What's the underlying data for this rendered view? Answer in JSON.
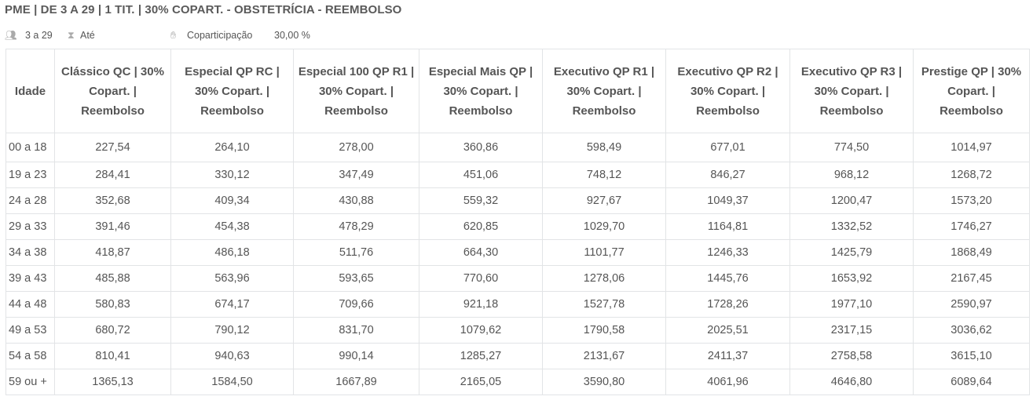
{
  "title": "PME | DE 3 A 29 | 1 TIT. | 30% COPART. - OBSTETRÍCIA - REEMBOLSO",
  "info": {
    "lives_icon": "people-icon",
    "lives": "3 a 29",
    "term_icon": "hourglass-icon",
    "term": "Até",
    "copart_icon": "hand-coin-icon",
    "copart_label": "Coparticipação",
    "copart_value": "30,00 %"
  },
  "table": {
    "headers": [
      "Idade",
      "Clássico QC | 30% Copart. | Reembolso",
      "Especial QP RC | 30% Copart. | Reembolso",
      "Especial 100 QP R1 | 30% Copart. | Reembolso",
      "Especial Mais QP | 30% Copart. | Reembolso",
      "Executivo QP R1 | 30% Copart. | Reembolso",
      "Executivo QP R2 | 30% Copart. | Reembolso",
      "Executivo QP R3 | 30% Copart. | Reembolso",
      "Prestige QP | 30% Copart. | Reembolso"
    ],
    "rows": [
      [
        "00 a 18",
        "227,54",
        "264,10",
        "278,00",
        "360,86",
        "598,49",
        "677,01",
        "774,50",
        "1014,97"
      ],
      [
        "19 a 23",
        "284,41",
        "330,12",
        "347,49",
        "451,06",
        "748,12",
        "846,27",
        "968,12",
        "1268,72"
      ],
      [
        "24 a 28",
        "352,68",
        "409,34",
        "430,88",
        "559,32",
        "927,67",
        "1049,37",
        "1200,47",
        "1573,20"
      ],
      [
        "29 a 33",
        "391,46",
        "454,38",
        "478,29",
        "620,85",
        "1029,70",
        "1164,81",
        "1332,52",
        "1746,27"
      ],
      [
        "34 a 38",
        "418,87",
        "486,18",
        "511,76",
        "664,30",
        "1101,77",
        "1246,33",
        "1425,79",
        "1868,49"
      ],
      [
        "39 a 43",
        "485,88",
        "563,96",
        "593,65",
        "770,60",
        "1278,06",
        "1445,76",
        "1653,92",
        "2167,45"
      ],
      [
        "44 a 48",
        "580,83",
        "674,17",
        "709,66",
        "921,18",
        "1527,78",
        "1728,26",
        "1977,10",
        "2590,97"
      ],
      [
        "49 a 53",
        "680,72",
        "790,12",
        "831,70",
        "1079,62",
        "1790,58",
        "2025,51",
        "2317,15",
        "3036,62"
      ],
      [
        "54 a 58",
        "810,41",
        "940,63",
        "990,14",
        "1285,27",
        "2131,67",
        "2411,37",
        "2758,58",
        "3615,10"
      ],
      [
        "59 ou +",
        "1365,13",
        "1584,50",
        "1667,89",
        "2165,05",
        "3590,80",
        "4061,96",
        "4646,80",
        "6089,64"
      ]
    ]
  }
}
